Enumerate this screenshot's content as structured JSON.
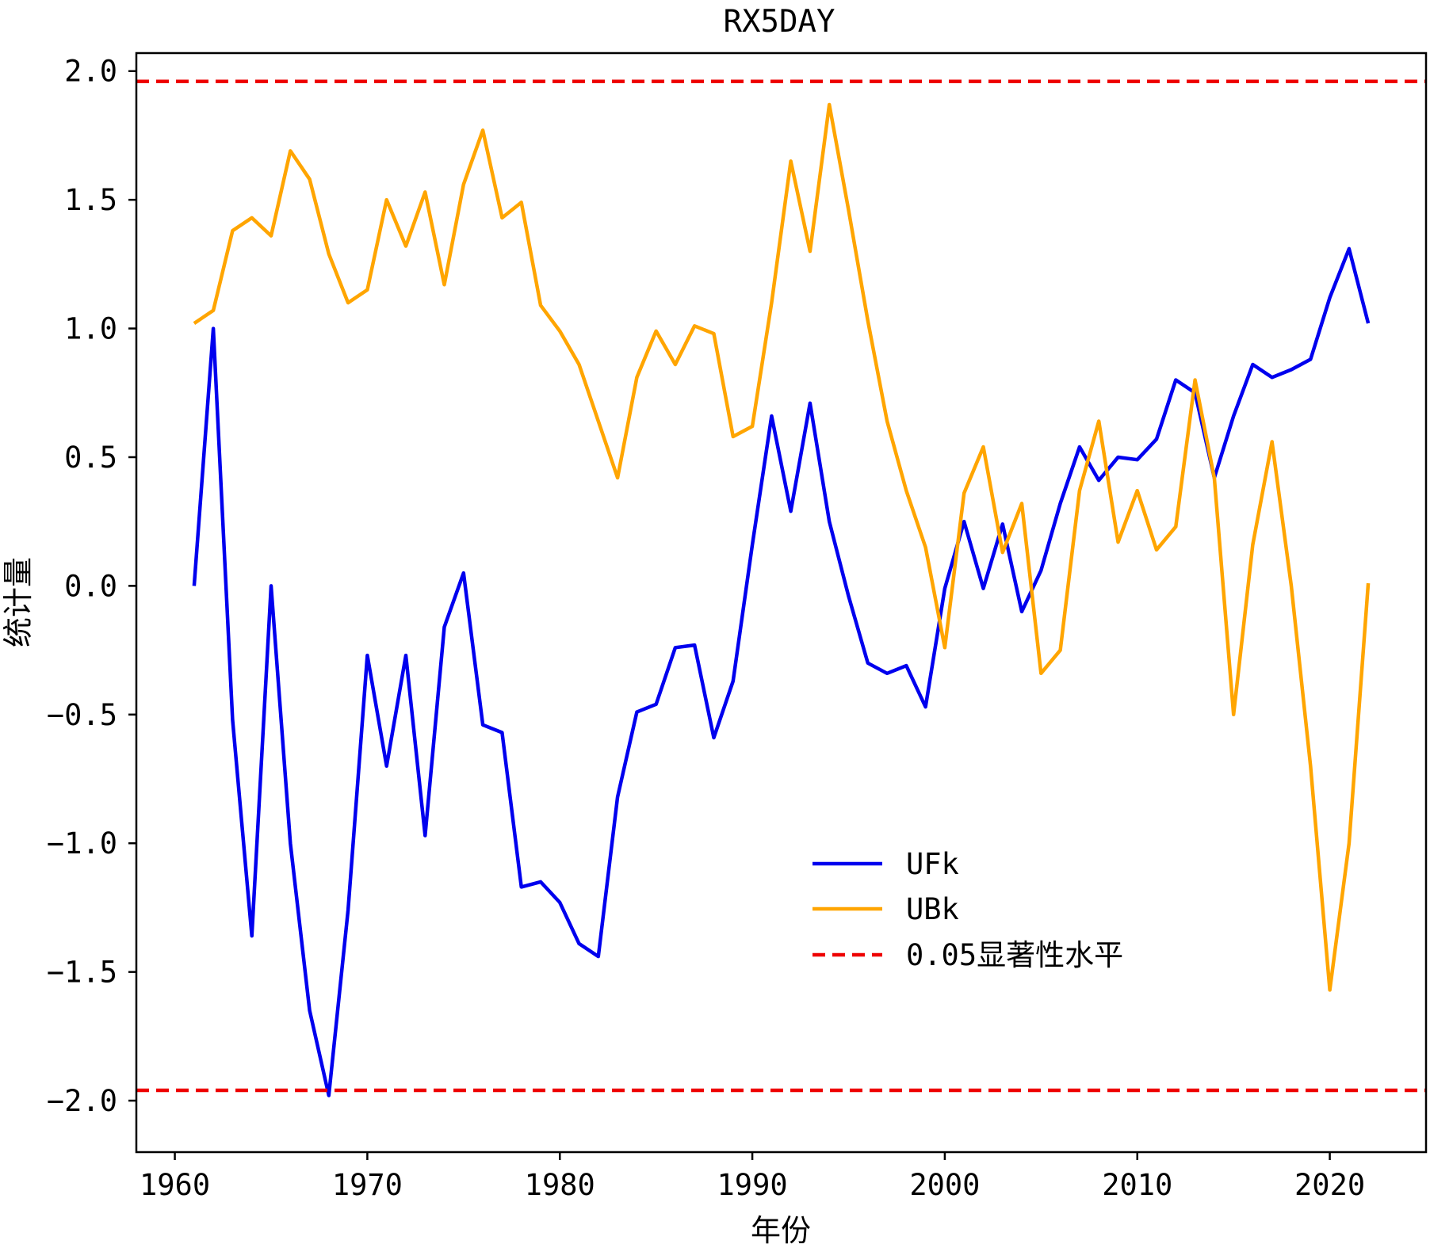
{
  "chart_data": {
    "type": "line",
    "title": "RX5DAY",
    "xlabel": "年份",
    "ylabel": "统计量",
    "xlim": [
      1958,
      2025
    ],
    "ylim": [
      -2.2,
      2.07
    ],
    "xticks": [
      1960,
      1970,
      1980,
      1990,
      2000,
      2010,
      2020
    ],
    "xtick_labels": [
      "1960",
      "1970",
      "1980",
      "1990",
      "2000",
      "2010",
      "2020"
    ],
    "yticks": [
      2.0,
      1.5,
      1.0,
      0.5,
      0.0,
      -0.5,
      -1.0,
      -1.5,
      -2.0
    ],
    "ytick_labels": [
      "2.0",
      "1.5",
      "1.0",
      "0.5",
      "0.0",
      "−0.5",
      "−1.0",
      "−1.5",
      "−2.0"
    ],
    "grid": false,
    "legend_position": "lower-center-right",
    "x": [
      1961,
      1962,
      1963,
      1964,
      1965,
      1966,
      1967,
      1968,
      1969,
      1970,
      1971,
      1972,
      1973,
      1974,
      1975,
      1976,
      1977,
      1978,
      1979,
      1980,
      1981,
      1982,
      1983,
      1984,
      1985,
      1986,
      1987,
      1988,
      1989,
      1990,
      1991,
      1992,
      1993,
      1994,
      1995,
      1996,
      1997,
      1998,
      1999,
      2000,
      2001,
      2002,
      2003,
      2004,
      2005,
      2006,
      2007,
      2008,
      2009,
      2010,
      2011,
      2012,
      2013,
      2014,
      2015,
      2016,
      2017,
      2018,
      2019,
      2020,
      2021,
      2022
    ],
    "series": [
      {
        "name": "UFk",
        "color": "#0000ee",
        "style": "solid",
        "values": [
          0.0,
          1.0,
          -0.52,
          -1.36,
          0.0,
          -1.0,
          -1.65,
          -1.98,
          -1.26,
          -0.27,
          -0.7,
          -0.27,
          -0.97,
          -0.16,
          0.05,
          -0.54,
          -0.57,
          -1.17,
          -1.15,
          -1.23,
          -1.39,
          -1.44,
          -0.82,
          -0.49,
          -0.46,
          -0.24,
          -0.23,
          -0.59,
          -0.37,
          0.16,
          0.66,
          0.29,
          0.71,
          0.25,
          -0.04,
          -0.3,
          -0.34,
          -0.31,
          -0.47,
          -0.01,
          0.25,
          -0.01,
          0.24,
          -0.1,
          0.06,
          0.32,
          0.54,
          0.41,
          0.5,
          0.49,
          0.57,
          0.8,
          0.75,
          0.42,
          0.66,
          0.86,
          0.81,
          0.84,
          0.88,
          1.12,
          1.31,
          1.02
        ]
      },
      {
        "name": "UBk",
        "color": "#ffa500",
        "style": "solid",
        "values": [
          1.02,
          1.07,
          1.38,
          1.43,
          1.36,
          1.69,
          1.58,
          1.29,
          1.1,
          1.15,
          1.5,
          1.32,
          1.53,
          1.17,
          1.56,
          1.77,
          1.43,
          1.49,
          1.09,
          0.99,
          0.86,
          0.64,
          0.42,
          0.81,
          0.99,
          0.86,
          1.01,
          0.98,
          0.58,
          0.62,
          1.1,
          1.65,
          1.3,
          1.87,
          1.46,
          1.03,
          0.64,
          0.37,
          0.15,
          -0.24,
          0.36,
          0.54,
          0.13,
          0.32,
          -0.34,
          -0.25,
          0.37,
          0.64,
          0.17,
          0.37,
          0.14,
          0.23,
          0.8,
          0.42,
          -0.5,
          0.16,
          0.56,
          0.0,
          -0.7,
          -1.57,
          -1.0,
          0.01
        ]
      }
    ],
    "reference_lines": [
      {
        "name": "0.05显著性水平",
        "color": "#ee0000",
        "style": "dashed",
        "values": [
          1.96,
          -1.96
        ]
      }
    ]
  }
}
